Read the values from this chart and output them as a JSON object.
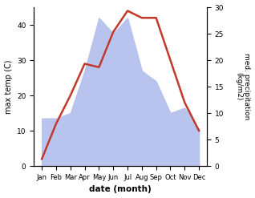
{
  "months": [
    "Jan",
    "Feb",
    "Mar",
    "Apr",
    "May",
    "Jun",
    "Jul",
    "Aug",
    "Sep",
    "Oct",
    "Nov",
    "Dec"
  ],
  "temperature": [
    2,
    12,
    20,
    29,
    28,
    38,
    44,
    42,
    42,
    30,
    18,
    10
  ],
  "precipitation": [
    9,
    9,
    10,
    18,
    28,
    25,
    28,
    18,
    16,
    10,
    11,
    7
  ],
  "temp_color": "#c0392b",
  "precip_fill_color": "#b8c4ee",
  "ylabel_left": "max temp (C)",
  "ylabel_right": "med. precipitation\n(kg/m2)",
  "xlabel": "date (month)",
  "ylim_left": [
    0,
    45
  ],
  "ylim_right": [
    0,
    30
  ],
  "left_yticks": [
    0,
    10,
    20,
    30,
    40
  ],
  "right_yticks": [
    0,
    5,
    10,
    15,
    20,
    25,
    30
  ]
}
